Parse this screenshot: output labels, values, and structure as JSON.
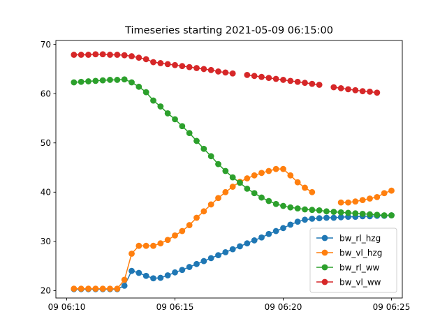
{
  "chart_data": {
    "type": "line",
    "title": "Timeseries starting 2021-05-09 06:15:00",
    "xlabel": "",
    "ylabel": "",
    "x_ticks": [
      "09 06:10",
      "09 06:15",
      "09 06:20",
      "09 06:25"
    ],
    "y_ticks": [
      "20",
      "30",
      "40",
      "50",
      "60",
      "70"
    ],
    "xlim": [
      "2021-05-09 06:09:30",
      "2021-05-09 06:25:30"
    ],
    "ylim": [
      18.5,
      70.8
    ],
    "grid": false,
    "legend_position": "lower right",
    "x": [
      "06:10:20",
      "06:10:40",
      "06:11:00",
      "06:11:20",
      "06:11:40",
      "06:12:00",
      "06:12:20",
      "06:12:40",
      "06:13:00",
      "06:13:20",
      "06:13:40",
      "06:14:00",
      "06:14:20",
      "06:14:40",
      "06:15:00",
      "06:15:20",
      "06:15:40",
      "06:16:00",
      "06:16:20",
      "06:16:40",
      "06:17:00",
      "06:17:20",
      "06:17:40",
      "06:18:00",
      "06:18:20",
      "06:18:40",
      "06:19:00",
      "06:19:20",
      "06:19:40",
      "06:20:00",
      "06:20:20",
      "06:20:40",
      "06:21:00",
      "06:21:20",
      "06:21:40",
      "06:22:00",
      "06:22:20",
      "06:22:40",
      "06:23:00",
      "06:23:20",
      "06:23:40",
      "06:24:00",
      "06:24:20",
      "06:24:40",
      "06:25:00"
    ],
    "series": [
      {
        "name": "bw_rl_hzg",
        "color": "#1f77b4",
        "values": [
          20.3,
          20.3,
          20.3,
          20.3,
          20.3,
          20.3,
          20.3,
          21.0,
          24.0,
          23.6,
          23.0,
          22.5,
          22.6,
          23.1,
          23.7,
          24.2,
          24.8,
          25.4,
          26.0,
          26.6,
          27.2,
          27.8,
          28.4,
          29.0,
          29.6,
          30.2,
          30.8,
          31.5,
          32.1,
          32.7,
          33.4,
          34.0,
          34.4,
          34.6,
          34.7,
          34.8,
          34.8,
          34.9,
          35.0,
          35.0,
          35.1,
          35.1,
          35.2,
          35.2,
          35.3
        ]
      },
      {
        "name": "bw_vl_hzg",
        "color": "#ff7f0e",
        "values": [
          20.4,
          20.4,
          20.4,
          20.4,
          20.4,
          20.4,
          20.4,
          22.2,
          27.5,
          29.1,
          29.1,
          29.1,
          29.6,
          30.3,
          31.2,
          32.1,
          33.3,
          34.8,
          36.1,
          37.5,
          38.8,
          40.0,
          41.1,
          42.1,
          42.8,
          43.4,
          43.9,
          44.3,
          44.7,
          44.7,
          43.4,
          42.0,
          40.9,
          40.0,
          null,
          null,
          null,
          37.9,
          37.9,
          38.1,
          38.4,
          38.7,
          39.0,
          39.8,
          40.3
        ]
      },
      {
        "name": "bw_rl_ww",
        "color": "#2ca02c",
        "values": [
          62.3,
          62.4,
          62.5,
          62.6,
          62.7,
          62.8,
          62.8,
          62.9,
          62.3,
          61.4,
          60.3,
          58.6,
          57.4,
          56.0,
          54.8,
          53.4,
          52.0,
          50.4,
          48.8,
          47.3,
          45.7,
          44.3,
          43.0,
          41.9,
          40.7,
          39.8,
          38.9,
          38.2,
          37.6,
          37.2,
          36.9,
          36.7,
          36.5,
          36.4,
          36.3,
          36.1,
          36.0,
          35.9,
          35.8,
          35.7,
          35.6,
          35.5,
          35.4,
          35.3,
          35.3
        ]
      },
      {
        "name": "bw_vl_ww",
        "color": "#d62728",
        "values": [
          67.9,
          67.9,
          67.9,
          68.0,
          68.0,
          67.9,
          67.9,
          67.8,
          67.6,
          67.3,
          67.0,
          66.4,
          66.2,
          66.0,
          65.8,
          65.6,
          65.4,
          65.2,
          65.0,
          64.8,
          64.5,
          64.3,
          64.1,
          null,
          63.8,
          63.6,
          63.4,
          63.2,
          63.0,
          62.8,
          62.6,
          62.4,
          62.2,
          62.0,
          61.8,
          null,
          61.3,
          61.1,
          60.9,
          60.7,
          60.5,
          60.4,
          60.2,
          null,
          null
        ]
      }
    ]
  }
}
